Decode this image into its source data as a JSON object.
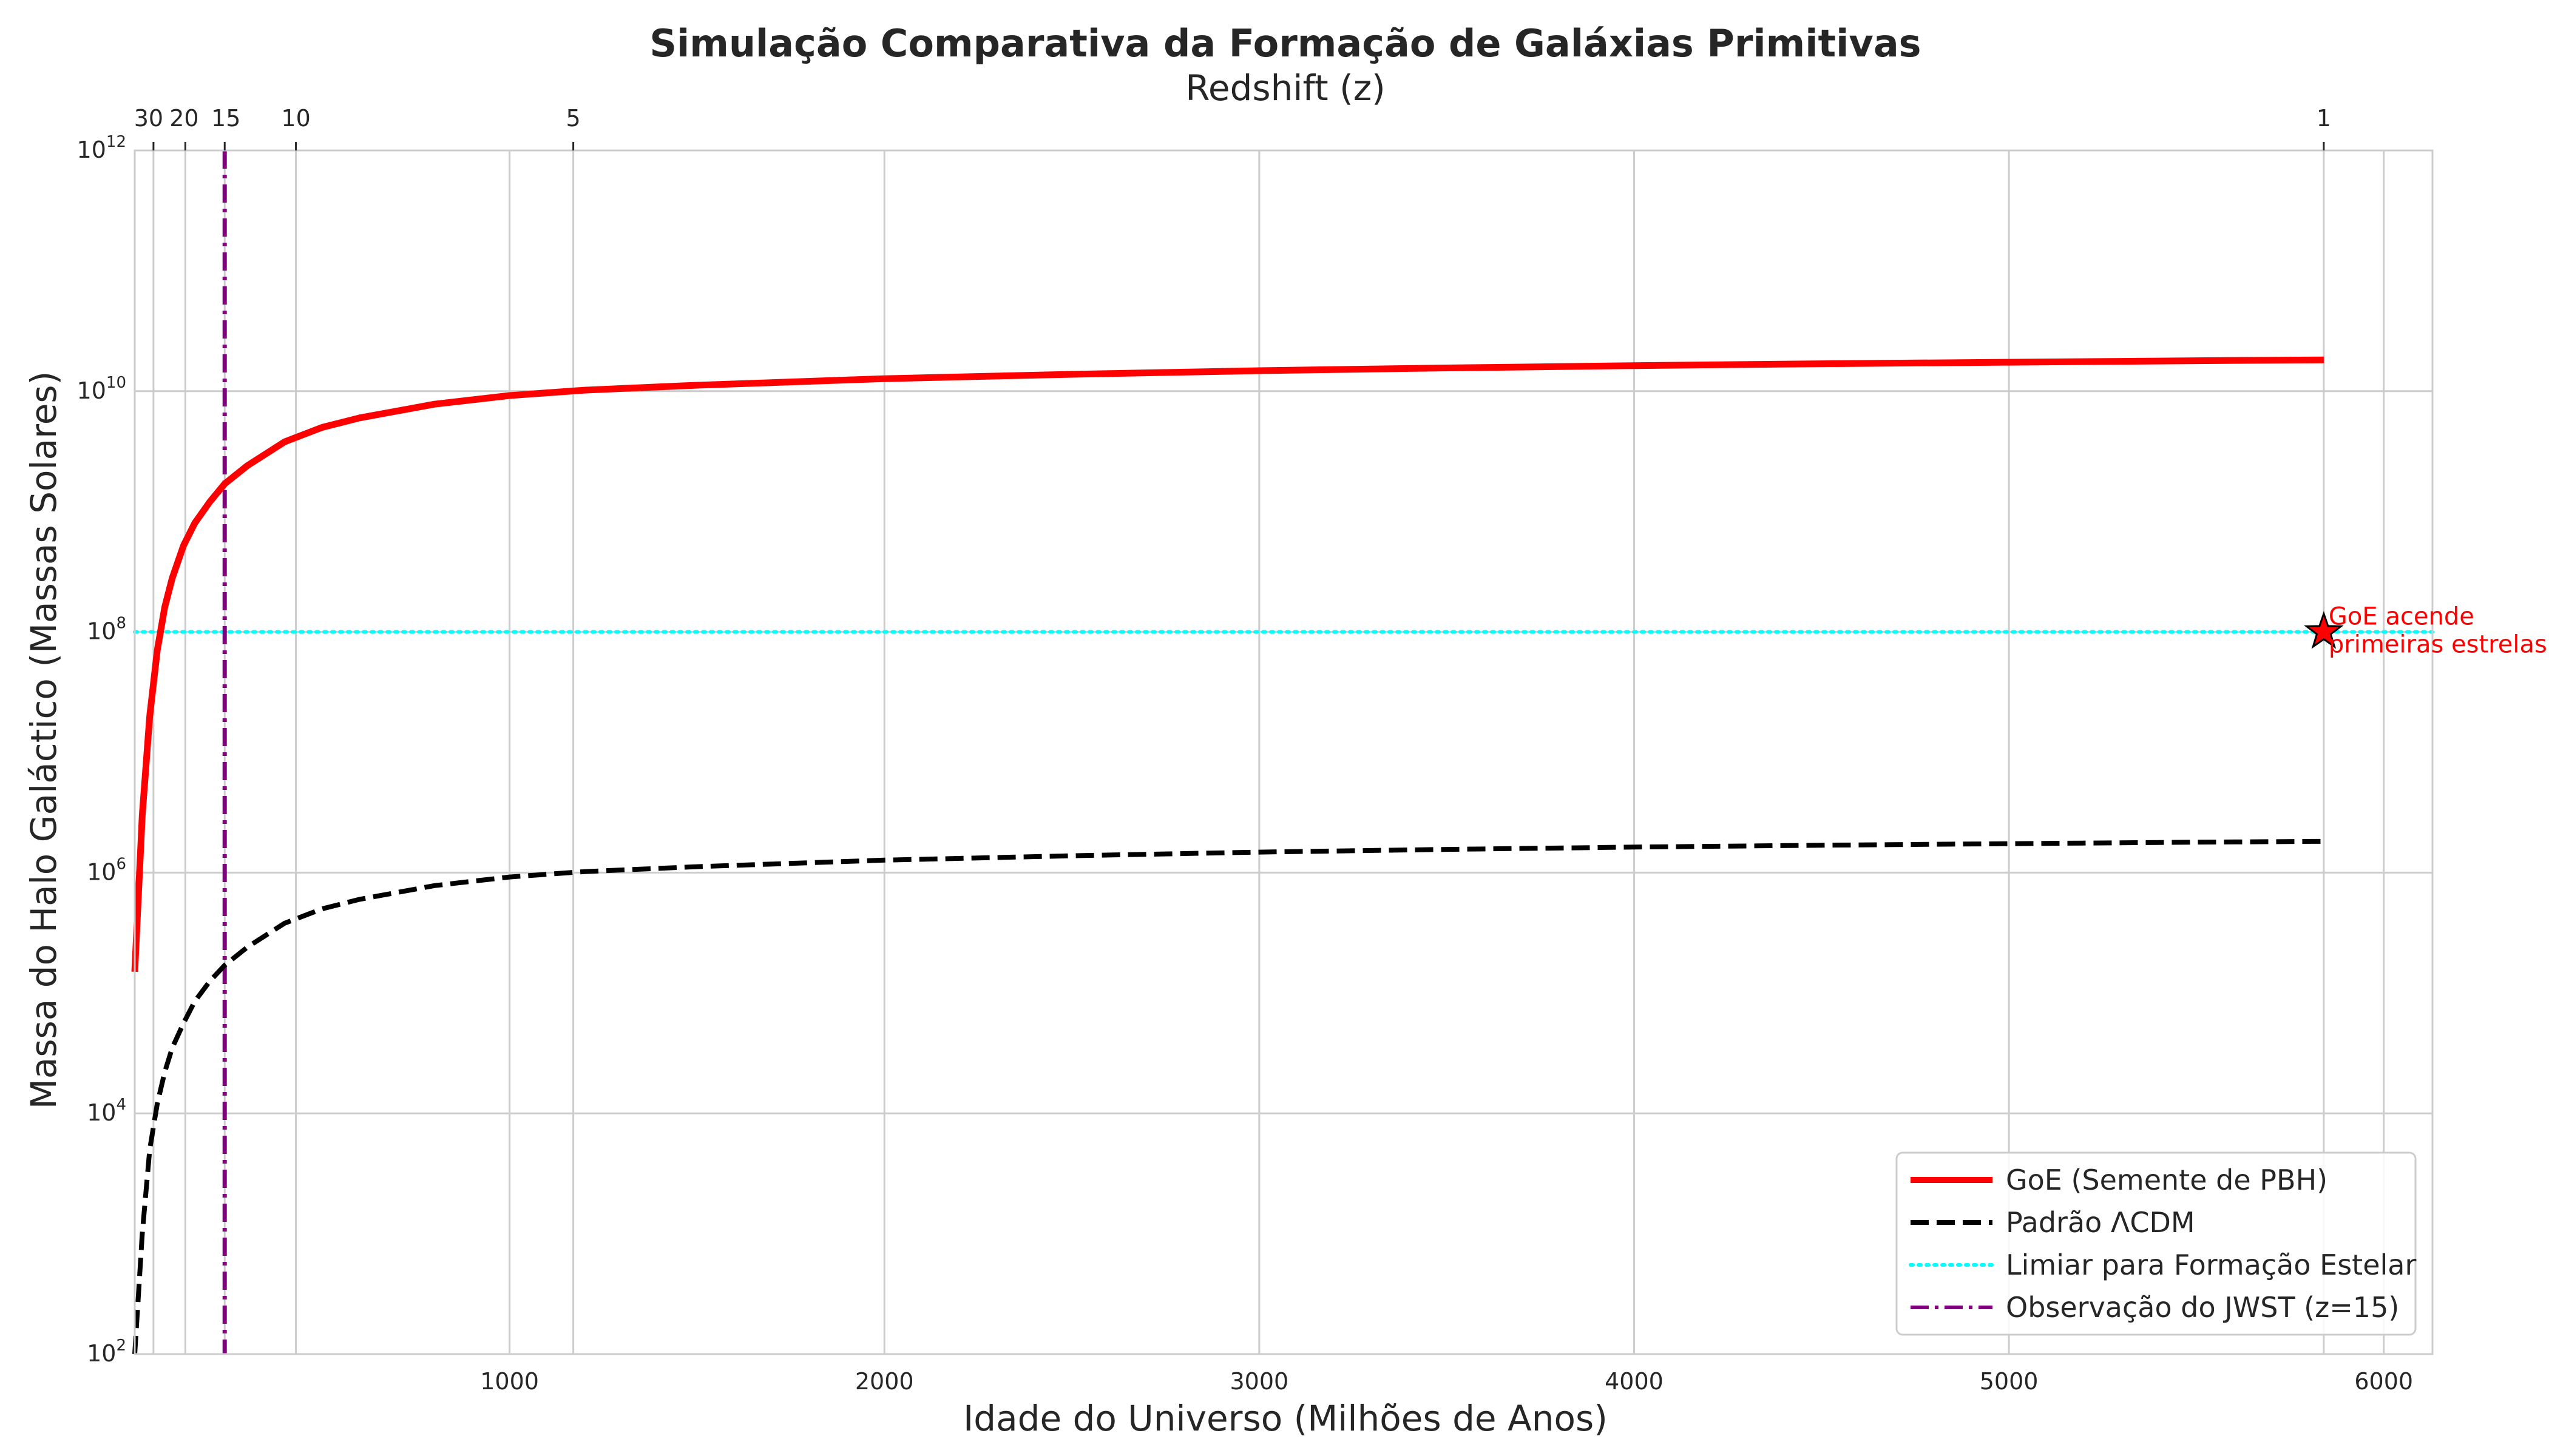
{
  "chart_data": {
    "type": "line",
    "title": "Simulação Comparativa da Formação de Galáxias Primitivas",
    "xlabel": "Idade do Universo (Milhões de Anos)",
    "ylabel": "Massa do Halo Galáctico (Massas Solares)",
    "top_xlabel": "Redshift (z)",
    "xlim": [
      0,
      6130
    ],
    "ylim": [
      100,
      1000000000000
    ],
    "yscale": "log",
    "grid": true,
    "legend_position": "lower-right",
    "x_ticks": [
      {
        "value": 1000,
        "label": "1000"
      },
      {
        "value": 2000,
        "label": "2000"
      },
      {
        "value": 3000,
        "label": "3000"
      },
      {
        "value": 4000,
        "label": "4000"
      },
      {
        "value": 5000,
        "label": "5000"
      },
      {
        "value": 6000,
        "label": "6000"
      }
    ],
    "y_ticks": [
      {
        "value": 100,
        "base": "10",
        "exp": "2"
      },
      {
        "value": 10000,
        "base": "10",
        "exp": "4"
      },
      {
        "value": 1000000,
        "base": "10",
        "exp": "6"
      },
      {
        "value": 100000000,
        "base": "10",
        "exp": "8"
      },
      {
        "value": 10000000000,
        "base": "10",
        "exp": "10"
      },
      {
        "value": 1000000000000,
        "base": "10",
        "exp": "12"
      }
    ],
    "top_ticks": [
      {
        "age": 50,
        "label": "30"
      },
      {
        "age": 135,
        "label": "20"
      },
      {
        "age": 240,
        "label": "15"
      },
      {
        "age": 430,
        "label": "10"
      },
      {
        "age": 1170,
        "label": "5"
      },
      {
        "age": 5840,
        "label": "1"
      }
    ],
    "series": [
      {
        "name": "GoE (Semente de PBH)",
        "color": "#ff0000",
        "style": "solid",
        "x": [
          0,
          20,
          40,
          60,
          80,
          100,
          130,
          160,
          200,
          240,
          300,
          400,
          500,
          600,
          800,
          1000,
          1200,
          1500,
          2000,
          2500,
          3000,
          3500,
          4000,
          4500,
          5000,
          5500,
          5840
        ],
        "y": [
          150000,
          3000000,
          20000000,
          70000000,
          160000000,
          280000000,
          520000000,
          800000000,
          1200000000,
          1700000000,
          2400000000,
          3800000000,
          5000000000,
          6000000000,
          7800000000,
          9200000000,
          10200000000,
          11200000000,
          12700000000,
          13800000000,
          14800000000,
          15600000000,
          16300000000,
          16900000000,
          17400000000,
          17900000000,
          18200000000
        ]
      },
      {
        "name": "Padrão ΛCDM",
        "color": "#000000",
        "style": "dashed",
        "x": [
          0,
          20,
          40,
          60,
          80,
          100,
          130,
          160,
          200,
          240,
          300,
          400,
          500,
          600,
          800,
          1000,
          1200,
          1500,
          2000,
          2500,
          3000,
          3500,
          4000,
          4500,
          5000,
          5500,
          5840
        ],
        "y": [
          50,
          1000,
          5000,
          12000,
          22000,
          35000,
          56000,
          85000,
          125000,
          170000,
          240000,
          380000,
          500000,
          600000,
          780000,
          920000,
          1020000,
          1120000,
          1270000,
          1380000,
          1480000,
          1560000,
          1630000,
          1690000,
          1740000,
          1790000,
          1820000
        ]
      },
      {
        "name": "Limiar para Formação Estelar",
        "color": "#00ffff",
        "style": "dotted",
        "orientation": "horizontal",
        "y": 100000000
      },
      {
        "name": "Observação do JWST (z=15)",
        "color": "#800080",
        "style": "dashdot",
        "orientation": "vertical",
        "x": 240
      }
    ],
    "annotations": [
      {
        "text_line1": "GoE acende",
        "text_line2": "primeiras estrelas",
        "x": 5840,
        "y": 100000000,
        "marker": "star",
        "color": "#ff0000"
      }
    ]
  }
}
